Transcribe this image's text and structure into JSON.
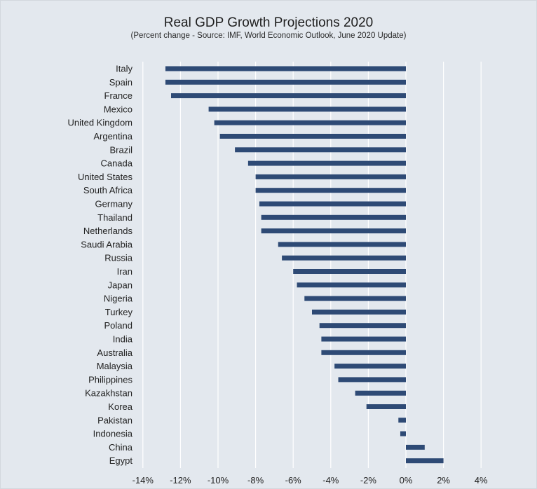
{
  "chart_data": {
    "type": "bar",
    "orientation": "horizontal",
    "title": "Real GDP Growth Projections 2020",
    "subtitle": "(Percent change - Source: IMF, World Economic Outlook, June 2020 Update)",
    "xlabel": "",
    "ylabel": "",
    "xlim": [
      -14,
      4
    ],
    "x_ticks": [
      "-14%",
      "-12%",
      "-10%",
      "-8%",
      "-6%",
      "-4%",
      "-2%",
      "0%",
      "2%",
      "4%"
    ],
    "x_tick_values": [
      -14,
      -12,
      -10,
      -8,
      -6,
      -4,
      -2,
      0,
      2,
      4
    ],
    "grid": "vertical",
    "bar_color": "#2e4a75",
    "categories": [
      "Italy",
      "Spain",
      "France",
      "Mexico",
      "United Kingdom",
      "Argentina",
      "Brazil",
      "Canada",
      "United States",
      "South Africa",
      "Germany",
      "Thailand",
      "Netherlands",
      "Saudi Arabia",
      "Russia",
      "Iran",
      "Japan",
      "Nigeria",
      "Turkey",
      "Poland",
      "India",
      "Australia",
      "Malaysia",
      "Philippines",
      "Kazakhstan",
      "Korea",
      "Pakistan",
      "Indonesia",
      "China",
      "Egypt"
    ],
    "values": [
      -12.8,
      -12.8,
      -12.5,
      -10.5,
      -10.2,
      -9.9,
      -9.1,
      -8.4,
      -8.0,
      -8.0,
      -7.8,
      -7.7,
      -7.7,
      -6.8,
      -6.6,
      -6.0,
      -5.8,
      -5.4,
      -5.0,
      -4.6,
      -4.5,
      -4.5,
      -3.8,
      -3.6,
      -2.7,
      -2.1,
      -0.4,
      -0.3,
      1.0,
      2.0
    ]
  }
}
